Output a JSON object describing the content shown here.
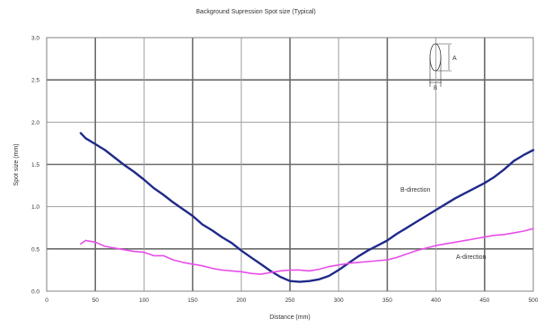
{
  "chart_data": {
    "type": "line",
    "title": "Background Supression Spot size (Typical)",
    "xlabel": "Distance (mm)",
    "ylabel": "Spot size (mm)",
    "xlim": [
      0,
      500
    ],
    "ylim": [
      0,
      3.0
    ],
    "xticks": [
      "0",
      "50",
      "100",
      "150",
      "200",
      "250",
      "300",
      "350",
      "400",
      "450",
      "500"
    ],
    "yticks": [
      "0.0",
      "0.5",
      "1.0",
      "1.5",
      "2.0",
      "2.5",
      "3.0"
    ],
    "grid": true,
    "series": [
      {
        "name": "B-direction",
        "color": "#1f2a8a",
        "x": [
          35,
          40,
          50,
          60,
          70,
          80,
          90,
          100,
          110,
          120,
          130,
          140,
          150,
          160,
          170,
          180,
          190,
          200,
          210,
          220,
          230,
          240,
          250,
          260,
          270,
          280,
          290,
          300,
          310,
          320,
          330,
          340,
          350,
          360,
          370,
          380,
          390,
          400,
          410,
          420,
          430,
          440,
          450,
          460,
          470,
          480,
          490,
          500
        ],
        "y": [
          1.87,
          1.81,
          1.74,
          1.67,
          1.58,
          1.49,
          1.41,
          1.32,
          1.22,
          1.14,
          1.05,
          0.97,
          0.89,
          0.79,
          0.72,
          0.64,
          0.57,
          0.48,
          0.4,
          0.32,
          0.24,
          0.17,
          0.12,
          0.11,
          0.12,
          0.14,
          0.18,
          0.25,
          0.33,
          0.41,
          0.48,
          0.54,
          0.6,
          0.68,
          0.75,
          0.82,
          0.89,
          0.96,
          1.03,
          1.1,
          1.16,
          1.22,
          1.28,
          1.35,
          1.44,
          1.54,
          1.61,
          1.67
        ]
      },
      {
        "name": "A-direction",
        "color": "#e84de8",
        "x": [
          35,
          40,
          50,
          60,
          70,
          80,
          90,
          100,
          110,
          120,
          130,
          140,
          150,
          160,
          170,
          180,
          190,
          200,
          210,
          220,
          230,
          240,
          250,
          260,
          270,
          280,
          290,
          300,
          310,
          320,
          330,
          340,
          350,
          360,
          370,
          380,
          390,
          400,
          410,
          420,
          430,
          440,
          450,
          460,
          470,
          480,
          490,
          500
        ],
        "y": [
          0.56,
          0.6,
          0.58,
          0.53,
          0.51,
          0.49,
          0.47,
          0.46,
          0.42,
          0.42,
          0.37,
          0.34,
          0.32,
          0.3,
          0.27,
          0.25,
          0.24,
          0.23,
          0.21,
          0.2,
          0.22,
          0.24,
          0.25,
          0.25,
          0.24,
          0.26,
          0.29,
          0.31,
          0.33,
          0.34,
          0.35,
          0.36,
          0.37,
          0.4,
          0.44,
          0.48,
          0.51,
          0.54,
          0.56,
          0.58,
          0.6,
          0.62,
          0.64,
          0.66,
          0.67,
          0.69,
          0.71,
          0.74
        ]
      }
    ],
    "annotations": {
      "b_label": "B-direction",
      "a_label": "A-direction",
      "diagram_a": "A",
      "diagram_b": "B"
    }
  }
}
